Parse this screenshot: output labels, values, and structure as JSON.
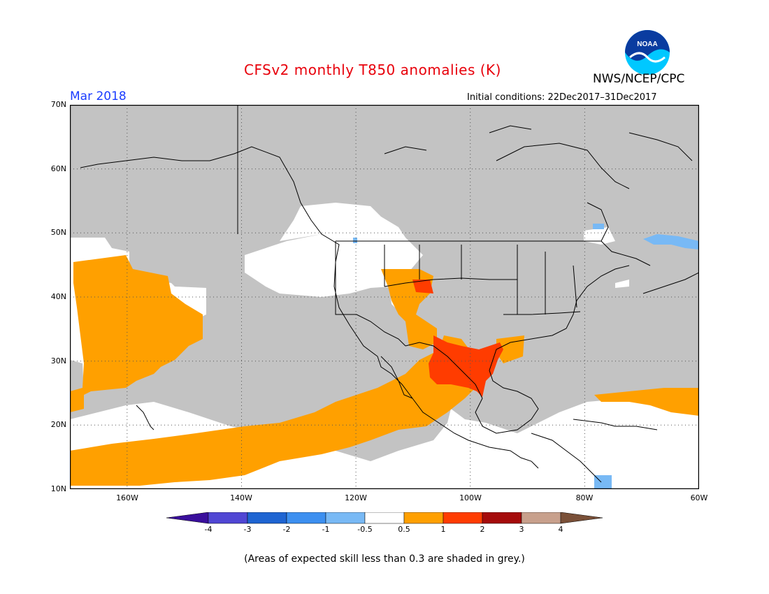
{
  "title": "CFSv2 monthly T850 anomalies (K)",
  "month": "Mar 2018",
  "initial_conditions": "Initial conditions: 22Dec2017–31Dec2017",
  "agency": "NWS/NCEP/CPC",
  "logo_text": "NOAA",
  "footnote": "(Areas of expected skill less than 0.3 are shaded in grey.)",
  "colors": {
    "skill_grey": "#c3c3c3",
    "land_outline": "#000000",
    "neutral": "#ffffff",
    "pos_0_5_1": "#ffa000",
    "pos_1_2": "#ff3c00",
    "neg_0_5_1": "#78b9f5",
    "title": "#e8000b",
    "month": "#1a3cff"
  },
  "map": {
    "lat_range": [
      10,
      70
    ],
    "lon_range": [
      -170,
      -60
    ],
    "lat_ticks": [
      "70N",
      "60N",
      "50N",
      "40N",
      "30N",
      "20N",
      "10N"
    ],
    "lon_ticks": [
      "160W",
      "140W",
      "120W",
      "100W",
      "80W",
      "60W"
    ],
    "grid": "dotted"
  },
  "colorbar": {
    "labels": [
      "-4",
      "-3",
      "-2",
      "-1",
      "-0.5",
      "0.5",
      "1",
      "2",
      "3",
      "4"
    ],
    "colors": [
      "#3a0f9c",
      "#5046d4",
      "#1e64d2",
      "#3c8ff0",
      "#78b9f5",
      "#ffffff",
      "#ffa000",
      "#ff3c00",
      "#a50a0a",
      "#c8a08c",
      "#7a5038"
    ]
  }
}
